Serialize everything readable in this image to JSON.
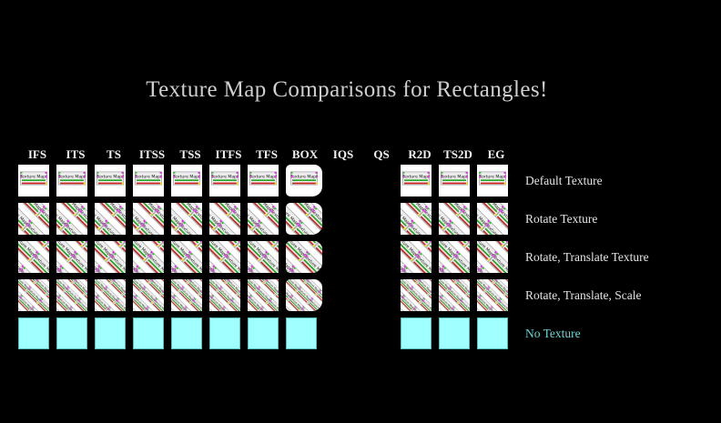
{
  "title": "Texture Map Comparisons for Rectangles!",
  "banner_text": "Texture Map!",
  "colors": {
    "background": "#000000",
    "title_text": "#cfcfcf",
    "header_text": "#f2f2f2",
    "row_label_text": "#e4e4e4",
    "no_texture_label_text": "#6fd2d2",
    "tile_background": "#ffffff",
    "no_texture_fill": "#a0ffff",
    "no_texture_border": "#54bcbc",
    "banner_background": "#ededed",
    "banner_border": "#a8a8a8",
    "banner_text_color": "#151515",
    "banner_green": "#23a523",
    "banner_red": "#cc2323",
    "banner_magenta": "#e22ce2",
    "banner_yellow": "#e8e82a",
    "banner_corner_green": "#3dbb3d"
  },
  "grid": {
    "columns": [
      {
        "id": "IFS",
        "label": "IFS",
        "filled": true,
        "shape": "square"
      },
      {
        "id": "ITS",
        "label": "ITS",
        "filled": true,
        "shape": "square"
      },
      {
        "id": "TS",
        "label": "TS",
        "filled": true,
        "shape": "square"
      },
      {
        "id": "ITSS",
        "label": "ITSS",
        "filled": true,
        "shape": "square"
      },
      {
        "id": "TSS",
        "label": "TSS",
        "filled": true,
        "shape": "square"
      },
      {
        "id": "ITFS",
        "label": "ITFS",
        "filled": true,
        "shape": "square"
      },
      {
        "id": "TFS",
        "label": "TFS",
        "filled": true,
        "shape": "square"
      },
      {
        "id": "BOX",
        "label": "BOX",
        "filled": true,
        "shape": "rounded"
      },
      {
        "id": "IQS",
        "label": "IQS",
        "filled": false,
        "shape": "none"
      },
      {
        "id": "QS",
        "label": "QS",
        "filled": false,
        "shape": "none"
      },
      {
        "id": "R2D",
        "label": "R2D",
        "filled": true,
        "shape": "square"
      },
      {
        "id": "TS2D",
        "label": "TS2D",
        "filled": true,
        "shape": "square"
      },
      {
        "id": "EG",
        "label": "EG",
        "filled": true,
        "shape": "square"
      }
    ],
    "rows": [
      {
        "label": "Default Texture",
        "texture": "default"
      },
      {
        "label": "Rotate Texture",
        "texture": "rotate"
      },
      {
        "label": "Rotate, Translate Texture",
        "texture": "rotate_translate"
      },
      {
        "label": "Rotate, Translate, Scale",
        "texture": "rotate_translate_scale"
      },
      {
        "label": "No Texture",
        "texture": "none"
      }
    ]
  }
}
